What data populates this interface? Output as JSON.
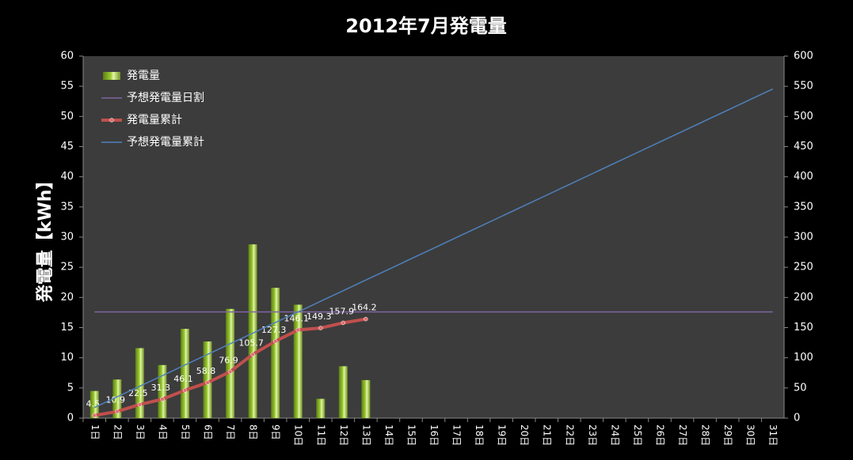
{
  "chart_data": {
    "type": "bar_line",
    "title": "2012年7月発電量",
    "ylabel": "発電量【kWh】",
    "categories": [
      "1日",
      "2日",
      "3日",
      "4日",
      "5日",
      "6日",
      "7日",
      "8日",
      "9日",
      "10日",
      "11日",
      "12日",
      "13日",
      "14日",
      "15日",
      "16日",
      "17日",
      "18日",
      "19日",
      "20日",
      "21日",
      "22日",
      "23日",
      "24日",
      "25日",
      "26日",
      "27日",
      "28日",
      "29日",
      "30日",
      "31日"
    ],
    "ylim": [
      0,
      60
    ],
    "yticks": [
      0,
      5,
      10,
      15,
      20,
      25,
      30,
      35,
      40,
      45,
      50,
      55,
      60
    ],
    "y2lim": [
      0,
      600
    ],
    "y2ticks": [
      0,
      50,
      100,
      150,
      200,
      250,
      300,
      350,
      400,
      450,
      500,
      550,
      600
    ],
    "legend": "upper left",
    "series": [
      {
        "name": "発電量",
        "type": "bar",
        "color": "#9acd32",
        "values": [
          4.5,
          6.4,
          11.6,
          8.8,
          14.8,
          12.7,
          18.1,
          28.8,
          21.6,
          18.8,
          3.2,
          8.6,
          6.3,
          null,
          null,
          null,
          null,
          null,
          null,
          null,
          null,
          null,
          null,
          null,
          null,
          null,
          null,
          null,
          null,
          null,
          null
        ]
      },
      {
        "name": "予想発電量日割",
        "type": "line",
        "color": "#8064a2",
        "values": [
          17.6,
          17.6,
          17.6,
          17.6,
          17.6,
          17.6,
          17.6,
          17.6,
          17.6,
          17.6,
          17.6,
          17.6,
          17.6,
          17.6,
          17.6,
          17.6,
          17.6,
          17.6,
          17.6,
          17.6,
          17.6,
          17.6,
          17.6,
          17.6,
          17.6,
          17.6,
          17.6,
          17.6,
          17.6,
          17.6,
          17.6
        ]
      },
      {
        "name": "発電量累計",
        "type": "line",
        "axis": "y2",
        "color": "#c0504d",
        "markers": true,
        "labels": true,
        "values": [
          4.5,
          10.9,
          22.5,
          31.3,
          46.1,
          58.8,
          76.9,
          105.7,
          127.3,
          146.1,
          149.3,
          157.9,
          164.2,
          null,
          null,
          null,
          null,
          null,
          null,
          null,
          null,
          null,
          null,
          null,
          null,
          null,
          null,
          null,
          null,
          null,
          null
        ]
      },
      {
        "name": "予想発電量累計",
        "type": "line",
        "axis": "y2",
        "color": "#4f81bd",
        "values": [
          17.6,
          35.2,
          52.8,
          70.4,
          88.0,
          105.6,
          123.2,
          140.8,
          158.4,
          176.0,
          193.6,
          211.2,
          228.8,
          246.4,
          264.0,
          281.6,
          299.2,
          316.8,
          334.4,
          352.0,
          369.6,
          387.2,
          404.8,
          422.4,
          440.0,
          457.6,
          475.2,
          492.8,
          510.4,
          528.0,
          545.6
        ]
      }
    ]
  }
}
